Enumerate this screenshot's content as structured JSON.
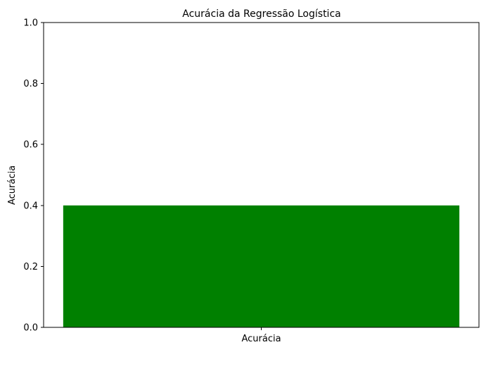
{
  "chart_data": {
    "type": "bar",
    "title": "Acurácia da Regressão Logística",
    "xlabel": "",
    "ylabel": "Acurácia",
    "categories": [
      "Acurácia"
    ],
    "values": [
      0.4
    ],
    "ylim": [
      0,
      1
    ],
    "yticks": [
      "0.0",
      "0.2",
      "0.4",
      "0.6",
      "0.8",
      "1.0"
    ],
    "grid": false,
    "colors": {
      "bar": "#008000",
      "axis": "#000000",
      "background": "#ffffff"
    }
  }
}
